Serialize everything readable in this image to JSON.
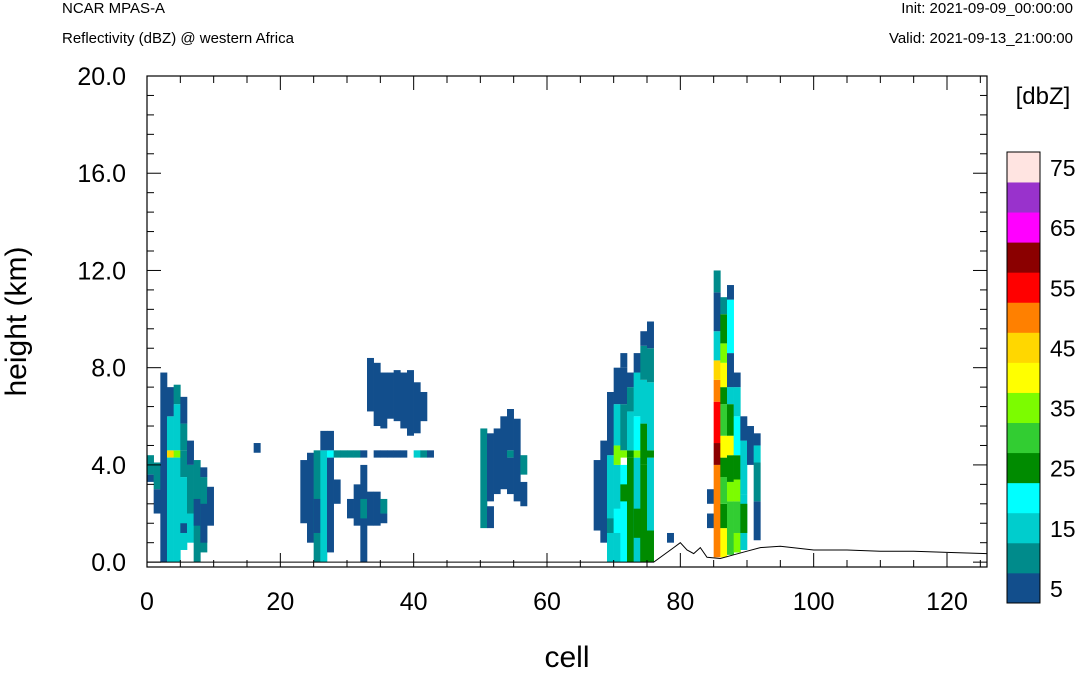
{
  "header": {
    "source": "NCAR MPAS-A",
    "subtitle": "Reflectivity (dBZ) @ western Africa",
    "init": "Init: 2021-09-09_00:00:00",
    "valid": "Valid: 2021-09-13_21:00:00"
  },
  "chart_data": {
    "type": "heatmap",
    "xlabel": "cell",
    "ylabel": "height (km)",
    "xlim": [
      0,
      126
    ],
    "ylim": [
      -0.2,
      20
    ],
    "x_ticks": [
      "0",
      "20",
      "40",
      "60",
      "80",
      "100",
      "120"
    ],
    "y_ticks": [
      "0.0",
      "4.0",
      "8.0",
      "12.0",
      "16.0",
      "20.0"
    ],
    "cell_height_km": 0.36,
    "colorbar": {
      "title": "[dbZ]",
      "labels": [
        "5",
        "15",
        "25",
        "35",
        "45",
        "55",
        "65",
        "75"
      ],
      "levels": [
        5,
        10,
        15,
        20,
        25,
        30,
        35,
        40,
        45,
        50,
        55,
        60,
        65,
        70,
        75
      ],
      "colors": [
        "#124e8c",
        "#008b8b",
        "#00cdcd",
        "#00ffff",
        "#008b00",
        "#32cd32",
        "#7cfc00",
        "#ffff00",
        "#ffd700",
        "#ff8000",
        "#ff0000",
        "#8b0000",
        "#ff00ff",
        "#9932cc",
        "#ffe4e1"
      ]
    },
    "terrain": [
      [
        0,
        0
      ],
      [
        76,
        0
      ],
      [
        79,
        0.6
      ],
      [
        80,
        0.8
      ],
      [
        81,
        0.5
      ],
      [
        82,
        0.35
      ],
      [
        83,
        0.6
      ],
      [
        84,
        0.2
      ],
      [
        86,
        0.15
      ],
      [
        88,
        0.3
      ],
      [
        90,
        0.45
      ],
      [
        92,
        0.6
      ],
      [
        95,
        0.65
      ],
      [
        100,
        0.5
      ],
      [
        105,
        0.5
      ],
      [
        110,
        0.45
      ],
      [
        115,
        0.45
      ],
      [
        120,
        0.4
      ],
      [
        126,
        0.35
      ]
    ],
    "cells": [
      [
        0,
        3.6,
        4.4,
        10
      ],
      [
        0,
        3.3,
        3.6,
        5
      ],
      [
        1,
        3.0,
        4.1,
        10
      ],
      [
        1,
        2.0,
        3.0,
        5
      ],
      [
        2,
        0.0,
        7.8,
        5
      ],
      [
        3,
        4.3,
        4.6,
        45
      ],
      [
        3,
        4.6,
        6.0,
        15
      ],
      [
        3,
        0.0,
        4.3,
        15
      ],
      [
        3,
        6.0,
        7.2,
        5
      ],
      [
        4,
        4.3,
        4.6,
        35
      ],
      [
        4,
        0.0,
        4.3,
        15
      ],
      [
        4,
        4.6,
        6.5,
        15
      ],
      [
        4,
        6.5,
        7.3,
        10
      ],
      [
        5,
        3.5,
        4.6,
        10
      ],
      [
        5,
        0.5,
        3.5,
        15
      ],
      [
        5,
        1.2,
        1.6,
        5
      ],
      [
        5,
        4.6,
        5.7,
        10
      ],
      [
        5,
        5.7,
        6.8,
        5
      ],
      [
        6,
        4.0,
        5.0,
        5
      ],
      [
        6,
        0.8,
        2.0,
        15
      ],
      [
        6,
        2.0,
        4.0,
        10
      ],
      [
        7,
        0.0,
        4.2,
        10
      ],
      [
        7,
        1.5,
        2.6,
        5
      ],
      [
        8,
        0.4,
        3.5,
        10
      ],
      [
        8,
        0.8,
        2.4,
        5
      ],
      [
        8,
        3.5,
        3.9,
        5
      ],
      [
        9,
        1.5,
        3.1,
        5
      ],
      [
        16,
        4.5,
        4.9,
        5
      ],
      [
        23,
        1.6,
        4.2,
        5
      ],
      [
        24,
        0.8,
        4.5,
        5
      ],
      [
        25,
        0.0,
        4.6,
        10
      ],
      [
        25,
        1.2,
        2.6,
        5
      ],
      [
        26,
        0.0,
        4.6,
        15
      ],
      [
        26,
        4.6,
        5.4,
        5
      ],
      [
        27,
        4.3,
        4.6,
        20
      ],
      [
        27,
        4.6,
        5.4,
        5
      ],
      [
        27,
        0.4,
        4.3,
        5
      ],
      [
        28,
        4.3,
        4.6,
        10
      ],
      [
        28,
        2.4,
        3.4,
        5
      ],
      [
        29,
        4.3,
        4.6,
        10
      ],
      [
        30,
        4.3,
        4.6,
        10
      ],
      [
        30,
        1.8,
        2.6,
        5
      ],
      [
        31,
        4.3,
        4.6,
        10
      ],
      [
        31,
        1.5,
        3.2,
        5
      ],
      [
        32,
        0.0,
        4.0,
        5
      ],
      [
        32,
        4.3,
        4.6,
        5
      ],
      [
        32,
        1.8,
        2.6,
        10
      ],
      [
        33,
        6.2,
        8.4,
        5
      ],
      [
        33,
        1.5,
        2.9,
        5
      ],
      [
        34,
        4.3,
        4.6,
        5
      ],
      [
        34,
        5.6,
        8.2,
        5
      ],
      [
        34,
        1.5,
        2.9,
        5
      ],
      [
        35,
        4.3,
        4.6,
        5
      ],
      [
        35,
        5.5,
        7.8,
        5
      ],
      [
        35,
        2.0,
        2.6,
        10
      ],
      [
        35,
        1.6,
        2.0,
        5
      ],
      [
        36,
        4.3,
        4.6,
        5
      ],
      [
        36,
        5.9,
        7.8,
        5
      ],
      [
        37,
        5.8,
        7.9,
        5
      ],
      [
        37,
        4.3,
        4.6,
        5
      ],
      [
        38,
        5.5,
        7.8,
        5
      ],
      [
        38,
        4.3,
        4.6,
        5
      ],
      [
        39,
        5.2,
        7.9,
        5
      ],
      [
        40,
        5.3,
        7.4,
        5
      ],
      [
        40,
        4.3,
        4.6,
        15
      ],
      [
        41,
        5.8,
        7.0,
        5
      ],
      [
        41,
        4.3,
        4.6,
        10
      ],
      [
        42,
        4.3,
        4.6,
        5
      ],
      [
        50,
        1.4,
        5.5,
        10
      ],
      [
        51,
        2.5,
        5.3,
        5
      ],
      [
        51,
        1.4,
        2.3,
        5
      ],
      [
        52,
        2.8,
        5.5,
        5
      ],
      [
        53,
        3.0,
        6.0,
        5
      ],
      [
        54,
        4.3,
        4.6,
        10
      ],
      [
        54,
        2.8,
        4.3,
        5
      ],
      [
        54,
        4.6,
        6.3,
        5
      ],
      [
        55,
        2.5,
        5.9,
        5
      ],
      [
        56,
        3.6,
        4.4,
        10
      ],
      [
        56,
        2.3,
        3.3,
        5
      ],
      [
        67,
        1.3,
        4.2,
        5
      ],
      [
        68,
        0.8,
        5.0,
        5
      ],
      [
        69,
        0.0,
        4.4,
        15
      ],
      [
        69,
        4.4,
        7.0,
        5
      ],
      [
        69,
        1.2,
        1.8,
        10
      ],
      [
        70,
        0.0,
        4.0,
        15
      ],
      [
        70,
        4.0,
        4.8,
        35
      ],
      [
        70,
        4.8,
        6.5,
        15
      ],
      [
        70,
        6.5,
        8.0,
        5
      ],
      [
        70,
        1.2,
        2.2,
        20
      ],
      [
        71,
        0.0,
        4.0,
        20
      ],
      [
        71,
        4.3,
        4.6,
        35
      ],
      [
        71,
        4.6,
        6.5,
        10
      ],
      [
        71,
        6.5,
        8.0,
        5
      ],
      [
        71,
        8.0,
        8.6,
        5
      ],
      [
        71,
        2.5,
        3.2,
        25
      ],
      [
        72,
        0.0,
        4.3,
        25
      ],
      [
        72,
        4.3,
        4.6,
        25
      ],
      [
        72,
        4.6,
        6.2,
        15
      ],
      [
        72,
        6.2,
        7.2,
        10
      ],
      [
        72,
        7.2,
        7.8,
        5
      ],
      [
        73,
        0.0,
        4.3,
        15
      ],
      [
        73,
        4.3,
        4.6,
        35
      ],
      [
        73,
        4.6,
        6.0,
        20
      ],
      [
        73,
        6.0,
        7.8,
        15
      ],
      [
        73,
        7.8,
        8.6,
        5
      ],
      [
        73,
        1.0,
        2.2,
        25
      ],
      [
        74,
        0.0,
        4.0,
        25
      ],
      [
        74,
        4.0,
        5.7,
        25
      ],
      [
        74,
        5.7,
        7.5,
        15
      ],
      [
        74,
        7.5,
        8.9,
        10
      ],
      [
        74,
        8.9,
        9.5,
        5
      ],
      [
        74,
        0.0,
        1.2,
        25
      ],
      [
        75,
        0.0,
        4.3,
        15
      ],
      [
        75,
        4.3,
        4.6,
        25
      ],
      [
        75,
        4.6,
        7.4,
        15
      ],
      [
        75,
        7.4,
        8.8,
        10
      ],
      [
        75,
        8.8,
        9.9,
        5
      ],
      [
        75,
        0.0,
        1.3,
        25
      ],
      [
        78,
        0.8,
        1.2,
        5
      ],
      [
        84,
        1.4,
        2.0,
        5
      ],
      [
        84,
        2.4,
        3.0,
        5
      ],
      [
        85,
        0.2,
        4.0,
        50
      ],
      [
        85,
        4.0,
        4.9,
        60
      ],
      [
        85,
        4.9,
        6.6,
        55
      ],
      [
        85,
        6.6,
        7.5,
        50
      ],
      [
        85,
        7.5,
        8.3,
        45
      ],
      [
        85,
        8.3,
        9.5,
        15
      ],
      [
        85,
        9.5,
        11.1,
        5
      ],
      [
        85,
        11.1,
        12.0,
        10
      ],
      [
        86,
        0.2,
        1.4,
        40
      ],
      [
        86,
        1.4,
        2.4,
        25
      ],
      [
        86,
        2.4,
        3.5,
        30
      ],
      [
        86,
        3.5,
        4.3,
        25
      ],
      [
        86,
        4.3,
        5.2,
        40
      ],
      [
        86,
        5.2,
        6.5,
        30
      ],
      [
        86,
        6.5,
        7.2,
        25
      ],
      [
        86,
        7.2,
        8.2,
        40
      ],
      [
        86,
        8.2,
        9.0,
        35
      ],
      [
        86,
        9.0,
        10.2,
        25
      ],
      [
        86,
        10.2,
        10.9,
        10
      ],
      [
        87,
        0.3,
        2.5,
        30
      ],
      [
        87,
        2.5,
        3.3,
        35
      ],
      [
        87,
        3.3,
        4.4,
        25
      ],
      [
        87,
        4.4,
        5.2,
        40
      ],
      [
        87,
        5.2,
        6.5,
        25
      ],
      [
        87,
        6.5,
        7.2,
        15
      ],
      [
        87,
        7.2,
        8.6,
        5
      ],
      [
        87,
        8.6,
        10.8,
        20
      ],
      [
        87,
        10.8,
        11.4,
        5
      ],
      [
        88,
        0.4,
        2.5,
        30
      ],
      [
        88,
        2.5,
        3.4,
        35
      ],
      [
        88,
        3.4,
        4.4,
        25
      ],
      [
        88,
        4.4,
        6.0,
        20
      ],
      [
        88,
        6.0,
        7.2,
        15
      ],
      [
        88,
        7.2,
        7.8,
        5
      ],
      [
        88,
        0.4,
        1.2,
        35
      ],
      [
        89,
        0.5,
        2.8,
        15
      ],
      [
        89,
        2.8,
        5.0,
        15
      ],
      [
        89,
        5.0,
        6.0,
        5
      ],
      [
        89,
        1.2,
        2.4,
        25
      ],
      [
        90,
        4.0,
        5.6,
        5
      ],
      [
        91,
        0.9,
        2.5,
        5
      ],
      [
        91,
        2.5,
        4.1,
        10
      ],
      [
        91,
        4.1,
        4.8,
        15
      ],
      [
        91,
        4.8,
        5.3,
        5
      ]
    ]
  }
}
